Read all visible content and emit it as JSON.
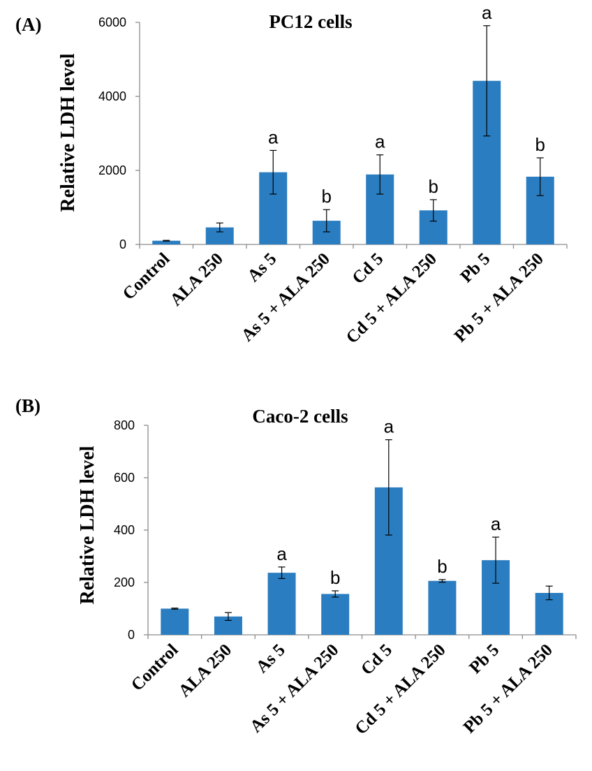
{
  "chart_data": [
    {
      "type": "bar",
      "panel_label": "(A)",
      "title": "PC12 cells",
      "xlabel": "",
      "ylabel": "Relative LDH  level",
      "ylim": [
        0,
        6000
      ],
      "yticks": [
        0,
        2000,
        4000,
        6000
      ],
      "ytick_labels": [
        "0",
        "2000",
        "4000",
        "6000"
      ],
      "grid": false,
      "bar_color": "#2a7dc0",
      "categories": [
        "Control",
        "ALA 250",
        "As 5",
        "As 5 + ALA 250",
        "Cd 5",
        "Cd 5 + ALA 250",
        "Pb 5",
        "Pb 5 + ALA 250"
      ],
      "values": [
        100,
        460,
        1950,
        640,
        1890,
        920,
        4420,
        1830
      ],
      "errors": [
        10,
        120,
        590,
        300,
        530,
        290,
        1490,
        510
      ],
      "annotations": [
        "",
        "",
        "a",
        "b",
        "a",
        "b",
        "a",
        "b"
      ]
    },
    {
      "type": "bar",
      "panel_label": "(B)",
      "title": "Caco-2 cells",
      "xlabel": "",
      "ylabel": "Relative LDH  level",
      "ylim": [
        0,
        800
      ],
      "yticks": [
        0,
        200,
        400,
        600,
        800
      ],
      "ytick_labels": [
        "0",
        "200",
        "400",
        "600",
        "800"
      ],
      "grid": false,
      "bar_color": "#2a7dc0",
      "categories": [
        "Control",
        "ALA 250",
        "As 5",
        "As 5 + ALA 250",
        "Cd 5",
        "Cd 5 + ALA 250",
        "Pb 5",
        "Pb 5 + ALA 250"
      ],
      "values": [
        100,
        70,
        237,
        156,
        563,
        206,
        285,
        160
      ],
      "errors": [
        2,
        15,
        22,
        12,
        182,
        5,
        88,
        26
      ],
      "annotations": [
        "",
        "",
        "a",
        "b",
        "a",
        "b",
        "a",
        ""
      ]
    }
  ]
}
